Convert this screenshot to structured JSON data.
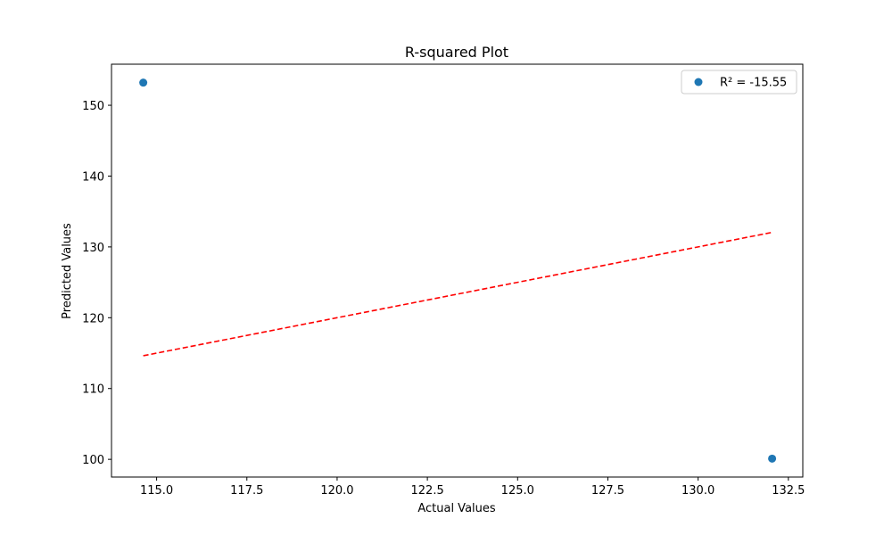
{
  "chart_data": {
    "type": "scatter",
    "title": "R-squared Plot",
    "xlabel": "Actual Values",
    "ylabel": "Predicted Values",
    "xlim": [
      113.75,
      132.9
    ],
    "ylim": [
      97.5,
      155.8
    ],
    "xticks": [
      115.0,
      117.5,
      120.0,
      122.5,
      125.0,
      127.5,
      130.0,
      132.5
    ],
    "xtick_labels": [
      "115.0",
      "117.5",
      "120.0",
      "122.5",
      "125.0",
      "127.5",
      "130.0",
      "132.5"
    ],
    "yticks": [
      100,
      110,
      120,
      130,
      140,
      150
    ],
    "ytick_labels": [
      "100",
      "110",
      "120",
      "130",
      "140",
      "150"
    ],
    "grid": false,
    "legend_position": "top-right",
    "series": [
      {
        "name": "R² = -15.55",
        "kind": "scatter",
        "color": "#1f77b4",
        "points": [
          {
            "x": 114.63,
            "y": 153.2
          },
          {
            "x": 132.05,
            "y": 100.1
          }
        ]
      },
      {
        "kind": "line",
        "style": "dashed",
        "color": "#ff0000",
        "points": [
          {
            "x": 114.63,
            "y": 114.63
          },
          {
            "x": 132.05,
            "y": 132.05
          }
        ]
      }
    ]
  }
}
